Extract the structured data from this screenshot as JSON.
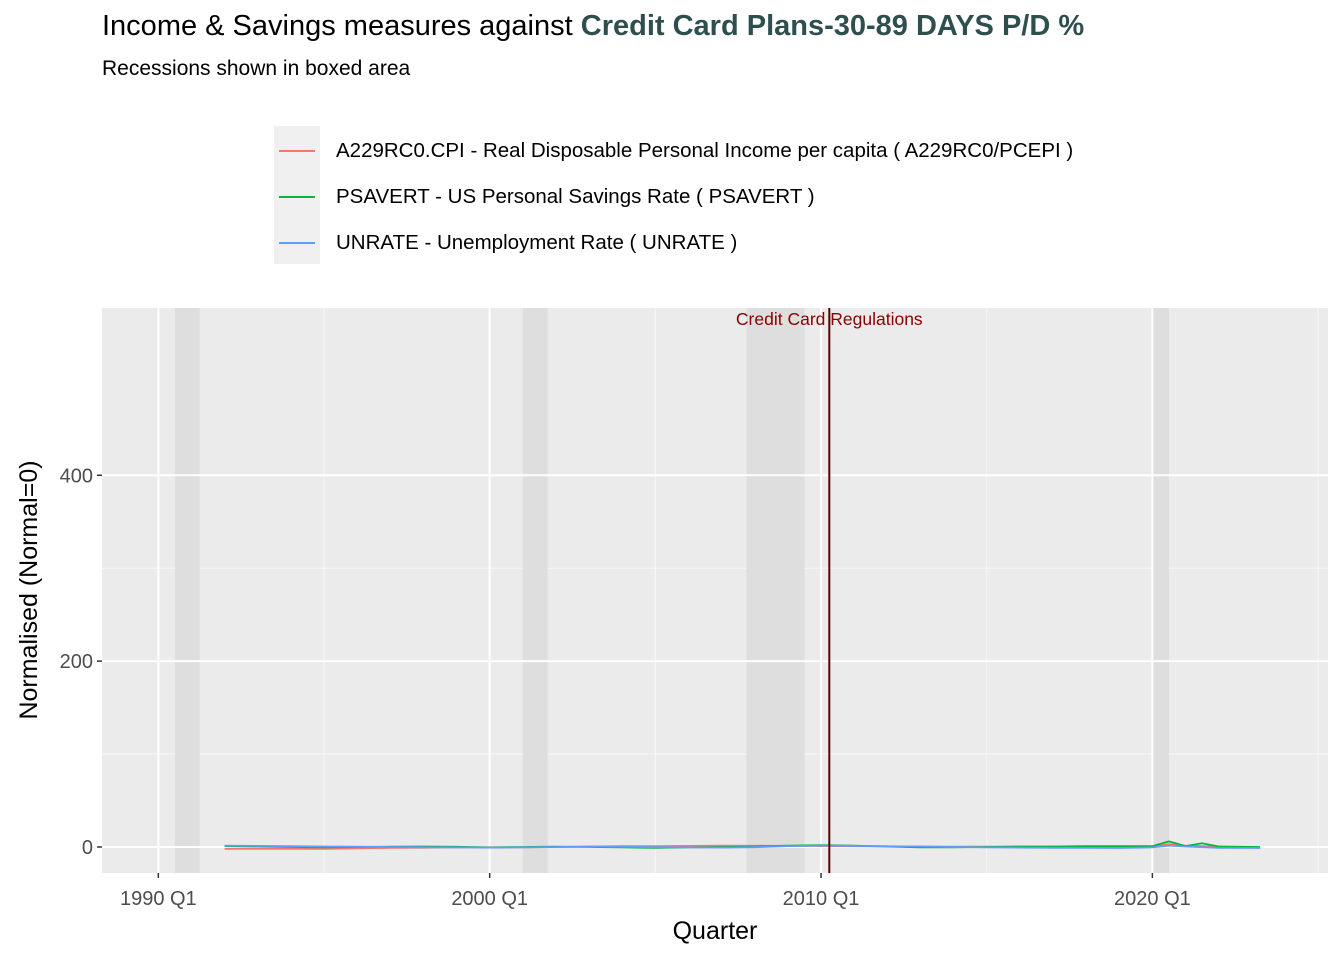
{
  "title": {
    "prefix": "Income & Savings measures against ",
    "highlight": "Credit Card Plans-30-89 DAYS P/D %"
  },
  "subtitle": "Recessions shown in boxed area",
  "legend": [
    {
      "label": "A229RC0.CPI - Real Disposable Personal Income per capita ( A229RC0/PCEPI )",
      "color": "#f8766d"
    },
    {
      "label": "PSAVERT - US Personal Savings Rate ( PSAVERT )",
      "color": "#00ba38"
    },
    {
      "label": "UNRATE - Unemployment Rate ( UNRATE )",
      "color": "#619cff"
    }
  ],
  "annotation": {
    "label": "Credit Card Regulations",
    "x": 2010.25,
    "color": "#8b0000",
    "line_color": "#5a0000"
  },
  "chart_data": {
    "type": "line",
    "title": "Income & Savings measures against Credit Card Plans-30-89 DAYS P/D %",
    "subtitle": "Recessions shown in boxed area",
    "xlabel": "Quarter",
    "ylabel": "Normalised (Normal=0)",
    "xlim": [
      1988.3,
      2025.3
    ],
    "ylim": [
      -28,
      580
    ],
    "x_ticks": [
      {
        "value": 1990,
        "label": "1990 Q1"
      },
      {
        "value": 2000,
        "label": "2000 Q1"
      },
      {
        "value": 2010,
        "label": "2010 Q1"
      },
      {
        "value": 2020,
        "label": "2020 Q1"
      }
    ],
    "y_ticks": [
      {
        "value": 0,
        "label": "0"
      },
      {
        "value": 200,
        "label": "200"
      },
      {
        "value": 400,
        "label": "400"
      }
    ],
    "grid": true,
    "legend_position": "top",
    "recessions": [
      {
        "start": 1990.5,
        "end": 1991.25
      },
      {
        "start": 2001.0,
        "end": 2001.75
      },
      {
        "start": 2007.75,
        "end": 2009.5
      },
      {
        "start": 2020.0,
        "end": 2020.5
      }
    ],
    "series": [
      {
        "name": "A229RC0.CPI - Real Disposable Personal Income per capita ( A229RC0/PCEPI )",
        "color": "#f8766d",
        "x": [
          1992.0,
          1993.0,
          1994.0,
          1995.0,
          1996.0,
          1997.0,
          1998.0,
          1999.0,
          2000.0,
          2001.0,
          2002.0,
          2003.0,
          2004.0,
          2005.0,
          2006.0,
          2007.0,
          2008.0,
          2009.0,
          2010.0,
          2011.0,
          2012.0,
          2013.0,
          2014.0,
          2015.0,
          2016.0,
          2017.0,
          2018.0,
          2019.0,
          2020.0,
          2020.5,
          2021.0,
          2022.0,
          2023.25
        ],
        "y": [
          -2,
          -2,
          -2,
          -2,
          -1.5,
          -1,
          -0.8,
          -0.5,
          -0.3,
          -0.3,
          0,
          0.5,
          0.8,
          0.8,
          1.2,
          1.5,
          1.3,
          1.2,
          1.0,
          0.8,
          0.5,
          0.4,
          0.3,
          0.3,
          0.2,
          0.2,
          0.2,
          0.1,
          0.5,
          3,
          1.5,
          0.5,
          -1
        ]
      },
      {
        "name": "PSAVERT - US Personal Savings Rate ( PSAVERT )",
        "color": "#00ba38",
        "x": [
          1992.0,
          1993.0,
          1994.0,
          1995.0,
          1996.0,
          1997.0,
          1998.0,
          1999.0,
          2000.0,
          2001.0,
          2002.0,
          2003.0,
          2004.0,
          2005.0,
          2006.0,
          2007.0,
          2008.0,
          2009.0,
          2010.0,
          2011.0,
          2012.0,
          2013.0,
          2014.0,
          2015.0,
          2016.0,
          2017.0,
          2018.0,
          2019.0,
          2020.0,
          2020.5,
          2021.0,
          2021.5,
          2022.0,
          2023.25
        ],
        "y": [
          1,
          0.5,
          0,
          -0.5,
          0,
          0.3,
          0.5,
          0.2,
          -0.5,
          0,
          0.3,
          0,
          -0.5,
          -1,
          -0.5,
          0,
          0.5,
          1.5,
          2,
          1.5,
          0.5,
          -0.5,
          -0.3,
          0,
          0.5,
          0.5,
          0.8,
          1,
          1,
          6,
          1,
          4,
          0.5,
          0
        ]
      },
      {
        "name": "UNRATE - Unemployment Rate ( UNRATE )",
        "color": "#619cff",
        "x": [
          1992.0,
          1993.0,
          1994.0,
          1995.0,
          1996.0,
          1997.0,
          1998.0,
          1999.0,
          2000.0,
          2001.0,
          2002.0,
          2003.0,
          2004.0,
          2005.0,
          2006.0,
          2007.0,
          2008.0,
          2009.0,
          2010.0,
          2011.0,
          2012.0,
          2013.0,
          2014.0,
          2015.0,
          2016.0,
          2017.0,
          2018.0,
          2019.0,
          2020.0,
          2020.5,
          2021.0,
          2022.0,
          2023.25
        ],
        "y": [
          1.5,
          1.2,
          0.8,
          0.5,
          0.3,
          0,
          -0.3,
          -0.5,
          -0.7,
          -0.5,
          0,
          0.5,
          0.2,
          -0.2,
          -0.5,
          -0.7,
          -0.2,
          1,
          1.5,
          1.2,
          0.8,
          0.5,
          0,
          -0.5,
          -0.7,
          -0.9,
          -1,
          -1.1,
          -0.5,
          1.5,
          0.5,
          -1,
          -1.1
        ]
      }
    ]
  }
}
